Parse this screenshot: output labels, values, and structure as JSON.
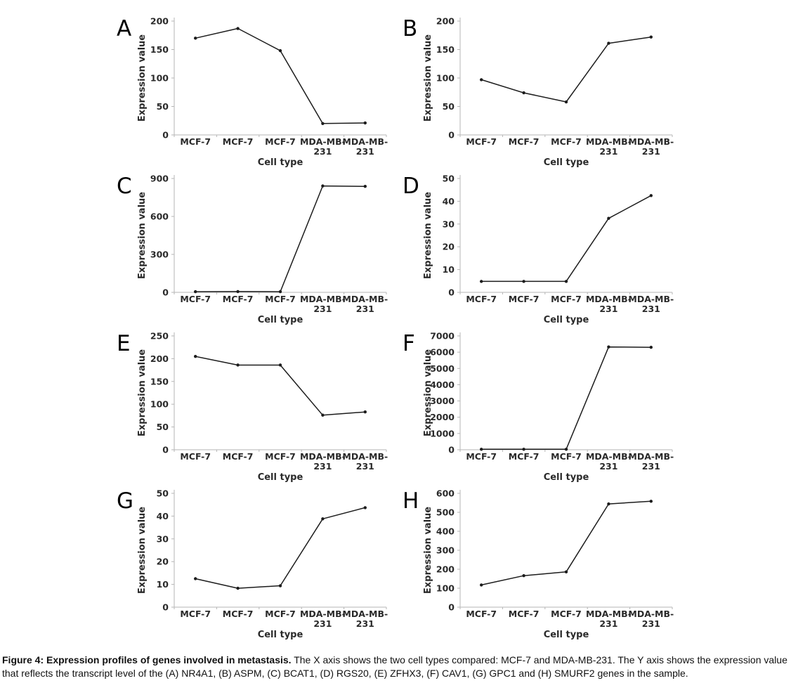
{
  "figure": {
    "y_axis_label": "Expression value",
    "x_axis_label": "Cell type",
    "categories": [
      "MCF-7",
      "MCF-7",
      "MCF-7",
      "MDA-MB-231",
      "MDA-MB-231"
    ],
    "categories_display": [
      [
        "MCF-7"
      ],
      [
        "MCF-7"
      ],
      [
        "MCF-7"
      ],
      [
        "MDA-MB-",
        "231"
      ],
      [
        "MDA-MB-",
        "231"
      ]
    ],
    "colors": {
      "line": "#1c1c1c",
      "marker": "#1c1c1c",
      "axis": "#b5b5b5",
      "tick_text": "#2a2a2a",
      "letter": "#000000"
    }
  },
  "chart_data": [
    {
      "type": "line",
      "panel": "A",
      "gene": "NR4A1",
      "categories": [
        "MCF-7",
        "MCF-7",
        "MCF-7",
        "MDA-MB-231",
        "MDA-MB-231"
      ],
      "values": [
        170,
        187,
        148,
        20,
        21
      ],
      "ylim": [
        0,
        200
      ],
      "yticks": [
        0,
        50,
        100,
        150,
        200
      ],
      "xlabel": "Cell type",
      "ylabel": "Expression value"
    },
    {
      "type": "line",
      "panel": "B",
      "gene": "ASPM",
      "categories": [
        "MCF-7",
        "MCF-7",
        "MCF-7",
        "MDA-MB-231",
        "MDA-MB-231"
      ],
      "values": [
        97,
        74,
        58,
        161,
        172
      ],
      "ylim": [
        0,
        200
      ],
      "yticks": [
        0,
        50,
        100,
        150,
        200
      ],
      "xlabel": "Cell type",
      "ylabel": "Expression value"
    },
    {
      "type": "line",
      "panel": "C",
      "gene": "BCAT1",
      "categories": [
        "MCF-7",
        "MCF-7",
        "MCF-7",
        "MDA-MB-231",
        "MDA-MB-231"
      ],
      "values": [
        5,
        6,
        5,
        841,
        838
      ],
      "ylim": [
        0,
        900
      ],
      "yticks": [
        0,
        300,
        600,
        900
      ],
      "xlabel": "Cell type",
      "ylabel": "Expression value"
    },
    {
      "type": "line",
      "panel": "D",
      "gene": "RGS20",
      "categories": [
        "MCF-7",
        "MCF-7",
        "MCF-7",
        "MDA-MB-231",
        "MDA-MB-231"
      ],
      "values": [
        4.8,
        4.8,
        4.8,
        32.5,
        42.5
      ],
      "ylim": [
        0,
        50
      ],
      "yticks": [
        0,
        10,
        20,
        30,
        40,
        50
      ],
      "xlabel": "Cell type",
      "ylabel": "Expression value"
    },
    {
      "type": "line",
      "panel": "E",
      "gene": "ZFHX3",
      "categories": [
        "MCF-7",
        "MCF-7",
        "MCF-7",
        "MDA-MB-231",
        "MDA-MB-231"
      ],
      "values": [
        205,
        186,
        186,
        76,
        83
      ],
      "ylim": [
        0,
        250
      ],
      "yticks": [
        0,
        50,
        100,
        150,
        200,
        250
      ],
      "xlabel": "Cell type",
      "ylabel": "Expression value"
    },
    {
      "type": "line",
      "panel": "F",
      "gene": "CAV1",
      "categories": [
        "MCF-7",
        "MCF-7",
        "MCF-7",
        "MDA-MB-231",
        "MDA-MB-231"
      ],
      "values": [
        30,
        30,
        30,
        6320,
        6300
      ],
      "ylim": [
        0,
        7000
      ],
      "yticks": [
        0,
        1000,
        2000,
        3000,
        4000,
        5000,
        6000,
        7000
      ],
      "xlabel": "Cell type",
      "ylabel": "Expression value"
    },
    {
      "type": "line",
      "panel": "G",
      "gene": "GPC1",
      "categories": [
        "MCF-7",
        "MCF-7",
        "MCF-7",
        "MDA-MB-231",
        "MDA-MB-231"
      ],
      "values": [
        12.5,
        8.3,
        9.4,
        38.8,
        43.7
      ],
      "ylim": [
        0,
        50
      ],
      "yticks": [
        0,
        10,
        20,
        30,
        40,
        50
      ],
      "xlabel": "Cell type",
      "ylabel": "Expression value"
    },
    {
      "type": "line",
      "panel": "H",
      "gene": "SMURF2",
      "categories": [
        "MCF-7",
        "MCF-7",
        "MCF-7",
        "MDA-MB-231",
        "MDA-MB-231"
      ],
      "values": [
        117,
        166,
        186,
        544,
        558
      ],
      "ylim": [
        0,
        600
      ],
      "yticks": [
        0,
        100,
        200,
        300,
        400,
        500,
        600
      ],
      "xlabel": "Cell type",
      "ylabel": "Expression value"
    }
  ],
  "caption": {
    "bold": "Figure 4: Expression profiles of genes involved in metastasis.",
    "text": " The X axis shows the two cell types compared: MCF-7 and MDA-MB-231. The Y axis shows the expression value that reflects the transcript level of the (A) NR4A1, (B) ASPM, (C) BCAT1, (D) RGS20, (E) ZFHX3, (F) CAV1, (G) GPC1 and (H) SMURF2 genes in the sample."
  }
}
